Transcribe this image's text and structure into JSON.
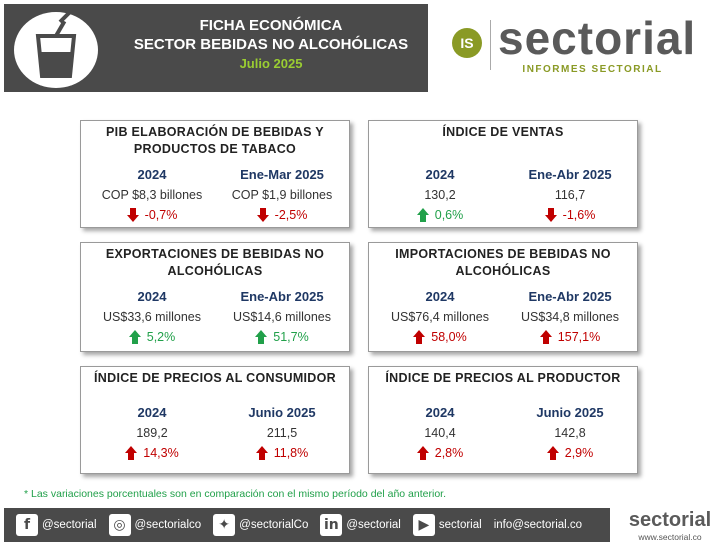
{
  "header": {
    "title_line1": "FICHA ECONÓMICA",
    "title_line2": "SECTOR BEBIDAS NO ALCOHÓLICAS",
    "date": "Julio 2025"
  },
  "logo": {
    "badge": "IS",
    "word": "sectorial",
    "subtitle": "INFORMES SECTORIAL"
  },
  "cards": [
    {
      "title_line1": "PIB ELABORACIÓN DE BEBIDAS Y",
      "title_line2": "PRODUCTOS DE TABACO",
      "left": {
        "period": "2024",
        "value": "COP $8,3 billones",
        "variation": "-0,7%",
        "direction": "down",
        "tone": "bad"
      },
      "right": {
        "period": "Ene-Mar 2025",
        "value": "COP $1,9 billones",
        "variation": "-2,5%",
        "direction": "down",
        "tone": "bad"
      }
    },
    {
      "title_line1": "ÍNDICE DE VENTAS",
      "title_line2": "",
      "left": {
        "period": "2024",
        "value": "130,2",
        "variation": "0,6%",
        "direction": "up",
        "tone": "good"
      },
      "right": {
        "period": "Ene-Abr 2025",
        "value": "116,7",
        "variation": "-1,6%",
        "direction": "down",
        "tone": "bad"
      }
    },
    {
      "title_line1": "EXPORTACIONES DE BEBIDAS NO",
      "title_line2": "ALCOHÓLICAS",
      "left": {
        "period": "2024",
        "value": "US$33,6 millones",
        "variation": "5,2%",
        "direction": "up",
        "tone": "good"
      },
      "right": {
        "period": "Ene-Abr 2025",
        "value": "US$14,6 millones",
        "variation": "51,7%",
        "direction": "up",
        "tone": "good"
      }
    },
    {
      "title_line1": "IMPORTACIONES DE BEBIDAS NO",
      "title_line2": "ALCOHÓLICAS",
      "left": {
        "period": "2024",
        "value": "US$76,4 millones",
        "variation": "58,0%",
        "direction": "up",
        "tone": "bad"
      },
      "right": {
        "period": "Ene-Abr 2025",
        "value": "US$34,8 millones",
        "variation": "157,1%",
        "direction": "up",
        "tone": "bad"
      }
    },
    {
      "title_line1": "ÍNDICE DE PRECIOS AL CONSUMIDOR",
      "title_line2": "",
      "left": {
        "period": "2024",
        "value": "189,2",
        "variation": "14,3%",
        "direction": "up",
        "tone": "bad"
      },
      "right": {
        "period": "Junio 2025",
        "value": "211,5",
        "variation": "11,8%",
        "direction": "up",
        "tone": "bad"
      }
    },
    {
      "title_line1": "ÍNDICE DE PRECIOS AL PRODUCTOR",
      "title_line2": "",
      "left": {
        "period": "2024",
        "value": "140,4",
        "variation": "2,8%",
        "direction": "up",
        "tone": "bad"
      },
      "right": {
        "period": "Junio 2025",
        "value": "142,8",
        "variation": "2,9%",
        "direction": "up",
        "tone": "bad"
      }
    }
  ],
  "footnote": "* Las variaciones porcentuales son en comparación con el mismo período del año anterior.",
  "footer": {
    "facebook": "@sectorial",
    "instagram": "@sectorialco",
    "twitter": "@sectorialCo",
    "linkedin": "@sectorial",
    "youtube": "sectorial",
    "email": "info@sectorial.co",
    "brand": "sectorial",
    "url": "www.sectorial.co"
  },
  "colors": {
    "header_bg": "#4a4a4a",
    "accent_green": "#9acd32",
    "period_blue": "#1f3864",
    "bad_red": "#c00000",
    "good_green": "#21a04a"
  }
}
